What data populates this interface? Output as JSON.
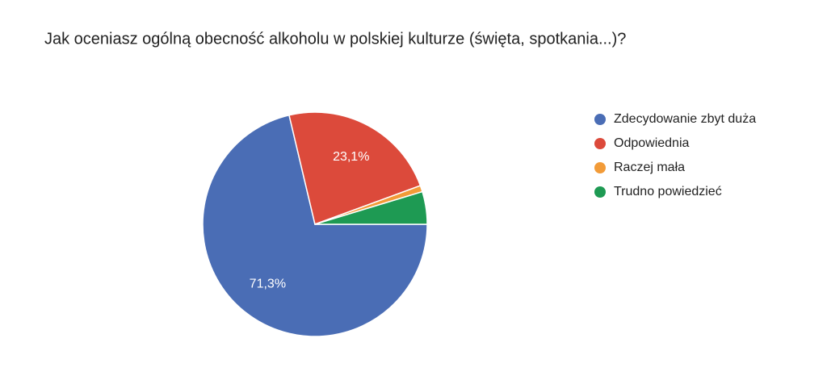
{
  "chart_data": {
    "type": "pie",
    "title": "Jak oceniasz ogólną obecność alkoholu w polskiej kulturze (święta, spotkania...)?",
    "categories": [
      "Zdecydowanie zbyt duża",
      "Odpowiednia",
      "Raczej mała",
      "Trudno powiedzieć"
    ],
    "values": [
      71.3,
      23.1,
      0.9,
      4.7
    ],
    "value_labels": [
      "71,3%",
      "23,1%",
      null,
      null
    ],
    "colors": [
      "#4a6db5",
      "#dc4a3b",
      "#f29b38",
      "#1e9a53"
    ],
    "legend": "right"
  }
}
